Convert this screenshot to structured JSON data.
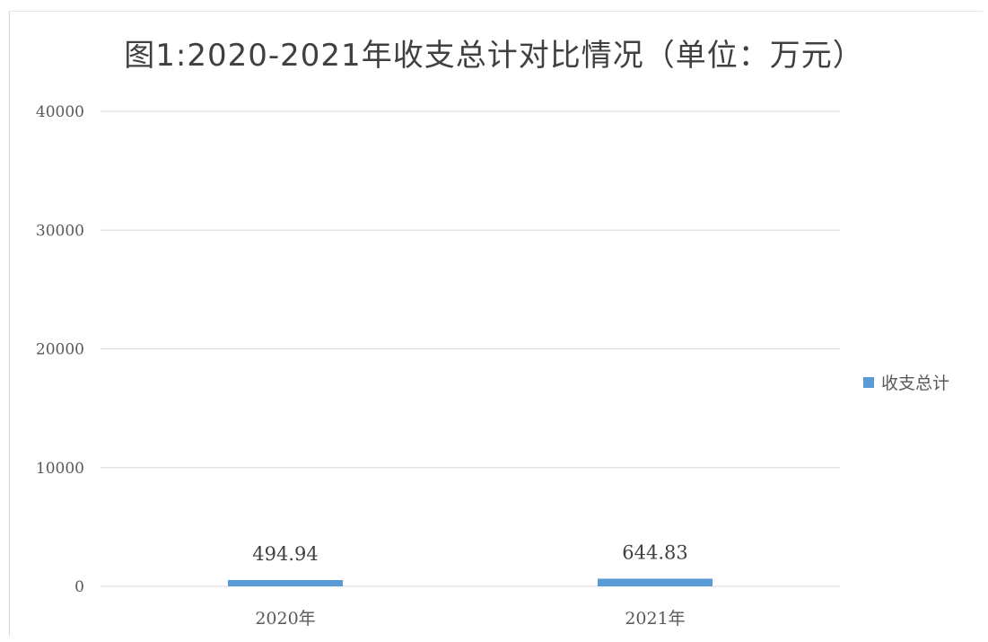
{
  "chart_data": {
    "type": "bar",
    "title": "图1:2020-2021年收支总计对比情况（单位：万元）",
    "categories": [
      "2020年",
      "2021年"
    ],
    "series": [
      {
        "name": "收支总计",
        "values": [
          494.94,
          644.83
        ],
        "labels": [
          "494.94",
          "644.83"
        ]
      }
    ],
    "y_ticks": [
      "0",
      "10000",
      "20000",
      "30000",
      "40000"
    ],
    "ylim": [
      0,
      40000
    ],
    "grid": true,
    "legend": "right",
    "colors": {
      "bar": "#5b9bd5",
      "grid": "#d9d9d9",
      "text": "#595959"
    }
  }
}
